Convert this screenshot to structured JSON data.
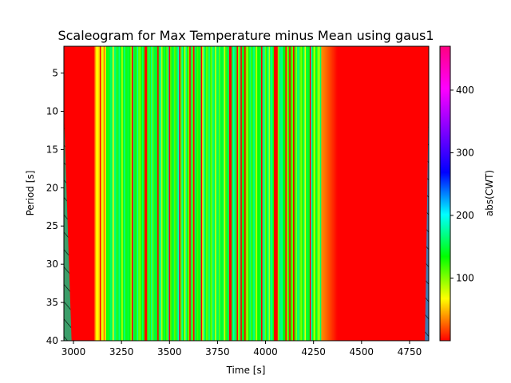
{
  "chart_data": {
    "type": "heatmap",
    "title": "Scaleogram for Max Temperature minus Mean using gaus1",
    "xlabel": "Time [s]",
    "ylabel": "Period [s]",
    "colorbar_label": "abs(CWT)",
    "xlim": [
      2950,
      4850
    ],
    "ylim": [
      40,
      1.5
    ],
    "x_ticks": [
      3000,
      3250,
      3500,
      3750,
      4000,
      4250,
      4500,
      4750
    ],
    "y_ticks": [
      5,
      10,
      15,
      20,
      25,
      30,
      35,
      40
    ],
    "color_range": [
      0,
      470
    ],
    "colorbar_ticks": [
      100,
      200,
      300,
      400
    ],
    "colormap": "prism",
    "colormap_stops": [
      "#ff0000",
      "#ffff00",
      "#00ff00",
      "#00ffff",
      "#0000ff",
      "#8000ff",
      "#ff00ff",
      "#ff0080"
    ],
    "regions": [
      {
        "x": [
          2950,
          2990
        ],
        "description": "cone of influence, hatched, mixed green/teal/blue"
      },
      {
        "x": [
          2990,
          3110
        ],
        "level": "low"
      },
      {
        "x": [
          3110,
          4290
        ],
        "level": "high, oscillating"
      },
      {
        "x": [
          4290,
          4830
        ],
        "level": "low"
      },
      {
        "x": [
          4830,
          4850
        ],
        "description": "cone of influence, hatched, blue/teal"
      }
    ],
    "grid": false,
    "legend": "none"
  }
}
